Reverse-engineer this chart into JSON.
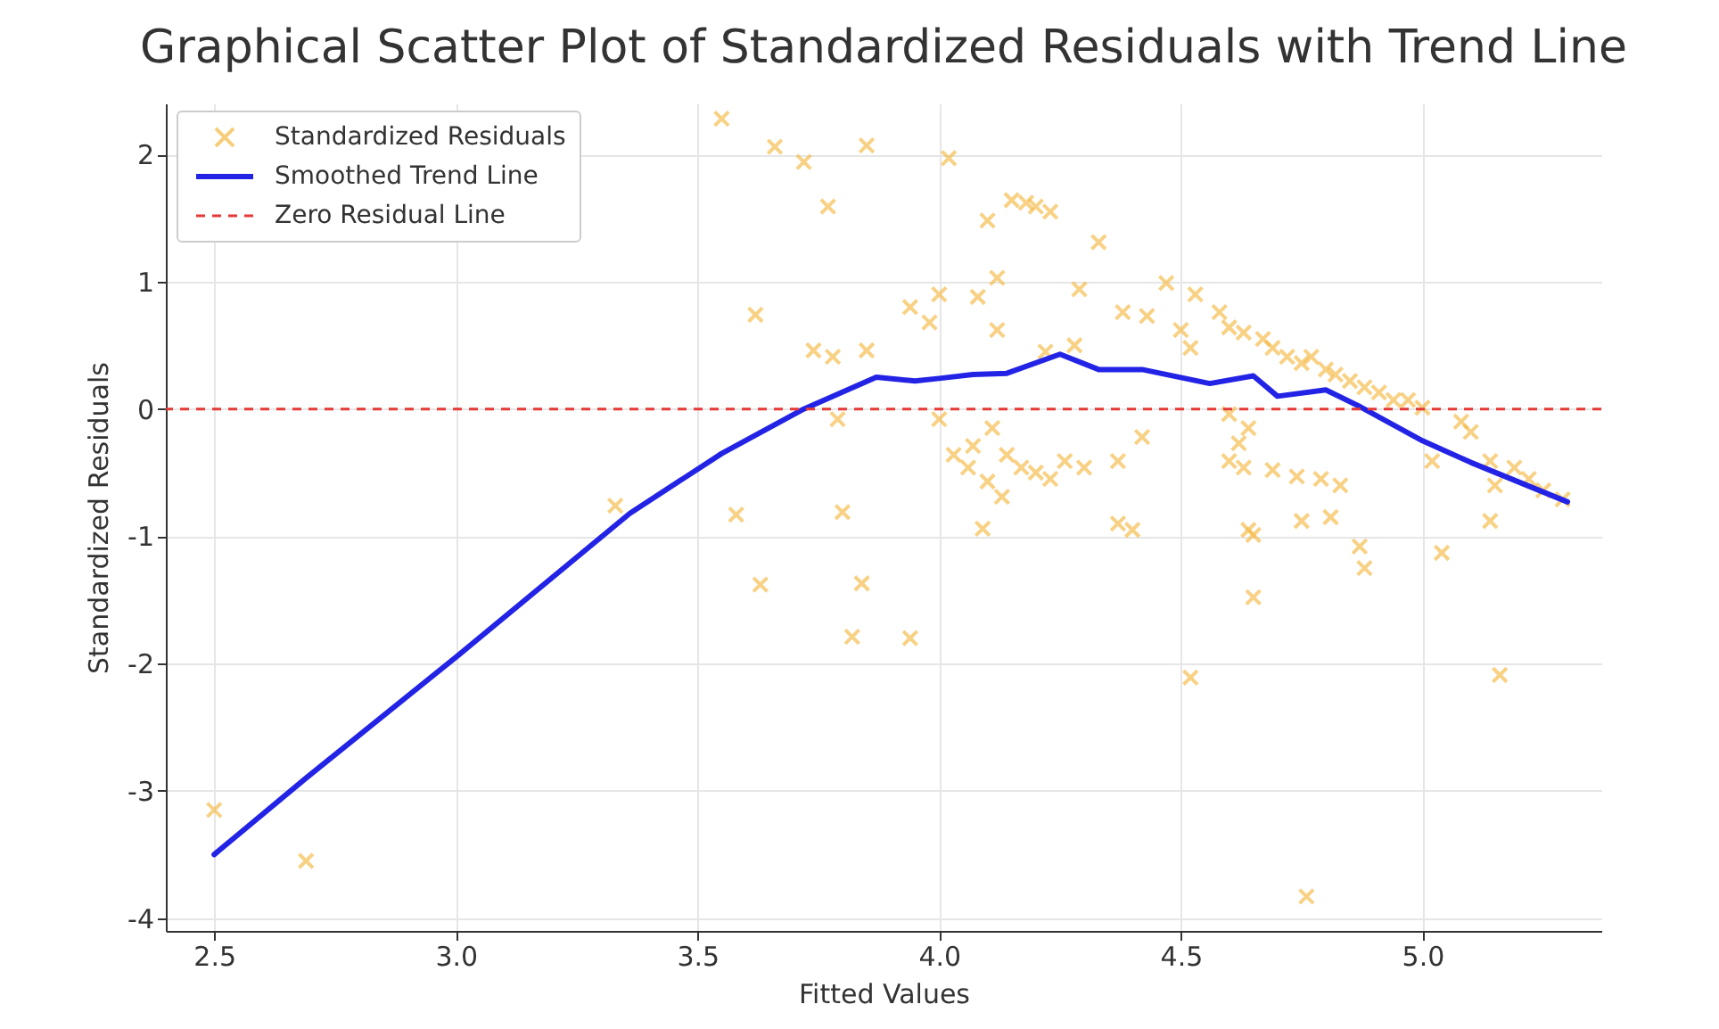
{
  "chart_data": {
    "type": "scatter",
    "title": "Graphical Scatter Plot of Standardized Residuals with Trend Line",
    "xlabel": "Fitted Values",
    "ylabel": "Standardized Residuals",
    "xlim": [
      2.4,
      5.37
    ],
    "ylim": [
      -4.1,
      2.4
    ],
    "xticks": [
      2.5,
      {
        "value": 3,
        "label": "3.0"
      },
      3.5,
      {
        "value": 4,
        "label": "4.0"
      },
      4.5,
      {
        "value": 5,
        "label": "5.0"
      }
    ],
    "yticks": [
      -4,
      -3,
      -2,
      -1,
      0,
      1,
      2
    ],
    "grid": true,
    "legend": "top left",
    "series": [
      {
        "name": "Standardized Residuals",
        "marker": "cross",
        "color": "#f5b942",
        "x": [
          2.5,
          2.69,
          3.33,
          3.55,
          3.66,
          3.72,
          3.85,
          3.77,
          3.62,
          3.74,
          3.85,
          3.79,
          3.78,
          3.58,
          3.8,
          3.63,
          3.84,
          3.82,
          3.94,
          4.02,
          4.15,
          4.18,
          4.2,
          4.23,
          4.1,
          4.33,
          4.12,
          4.08,
          4.0,
          3.94,
          3.98,
          4.29,
          4.38,
          4.47,
          4.53,
          4.12,
          4.22,
          4.28,
          4.43,
          4.0,
          4.07,
          4.11,
          4.03,
          4.06,
          4.1,
          4.14,
          4.17,
          4.2,
          4.23,
          4.26,
          4.3,
          4.13,
          4.09,
          4.37,
          4.4,
          4.42,
          4.37,
          4.52,
          4.5,
          4.52,
          4.58,
          4.6,
          4.63,
          4.67,
          4.69,
          4.72,
          4.75,
          4.77,
          4.8,
          4.82,
          4.85,
          4.88,
          4.91,
          4.94,
          4.97,
          5.0,
          4.6,
          4.64,
          4.62,
          4.6,
          4.63,
          4.69,
          4.74,
          4.79,
          4.83,
          4.64,
          4.65,
          4.65,
          4.75,
          4.81,
          4.87,
          4.76,
          5.02,
          5.08,
          5.1,
          5.14,
          5.19,
          5.22,
          5.25,
          5.29,
          5.15,
          5.14,
          5.04,
          4.88,
          5.16
        ],
        "values": [
          -3.15,
          -3.55,
          -0.76,
          2.28,
          2.06,
          1.94,
          2.07,
          1.59,
          0.74,
          0.46,
          0.46,
          -0.08,
          0.41,
          -0.83,
          -0.81,
          -1.38,
          -1.37,
          -1.79,
          -1.8,
          1.97,
          1.64,
          1.62,
          1.59,
          1.55,
          1.48,
          1.31,
          1.03,
          0.88,
          0.9,
          0.8,
          0.68,
          0.94,
          0.76,
          0.99,
          0.9,
          0.62,
          0.45,
          0.5,
          0.73,
          -0.08,
          -0.29,
          -0.15,
          -0.36,
          -0.46,
          -0.57,
          -0.36,
          -0.46,
          -0.5,
          -0.55,
          -0.41,
          -0.46,
          -0.69,
          -0.94,
          -0.9,
          -0.95,
          -0.22,
          -0.41,
          -2.11,
          0.62,
          0.48,
          0.76,
          0.64,
          0.6,
          0.55,
          0.48,
          0.41,
          0.36,
          0.41,
          0.31,
          0.27,
          0.22,
          0.17,
          0.13,
          0.07,
          0.07,
          0.01,
          -0.04,
          -0.15,
          -0.27,
          -0.41,
          -0.46,
          -0.48,
          -0.53,
          -0.55,
          -0.6,
          -0.95,
          -0.99,
          -1.48,
          -0.88,
          -0.85,
          -1.08,
          -3.83,
          -0.41,
          -0.1,
          -0.18,
          -0.41,
          -0.46,
          -0.55,
          -0.64,
          -0.71,
          -0.6,
          -0.88,
          -1.13,
          -1.25,
          -2.09
        ]
      },
      {
        "name": "Smoothed Trend Line",
        "type": "line",
        "color": "#2323e6",
        "line_style": "solid",
        "x": [
          2.5,
          2.69,
          3.0,
          3.36,
          3.55,
          3.72,
          3.87,
          3.95,
          4.0,
          4.07,
          4.14,
          4.25,
          4.33,
          4.42,
          4.56,
          4.65,
          4.7,
          4.8,
          4.87,
          5.0,
          5.1,
          5.3
        ],
        "values": [
          -3.5,
          -2.9,
          -1.95,
          -0.82,
          -0.35,
          0.0,
          0.25,
          0.22,
          0.24,
          0.27,
          0.28,
          0.43,
          0.31,
          0.31,
          0.2,
          0.26,
          0.1,
          0.15,
          0.02,
          -0.25,
          -0.42,
          -0.73
        ]
      }
    ],
    "ref_lines": [
      {
        "axis": "y",
        "value": 0,
        "label": "Zero Residual Line",
        "color": "#e53935",
        "line_style": "dashed"
      }
    ]
  }
}
